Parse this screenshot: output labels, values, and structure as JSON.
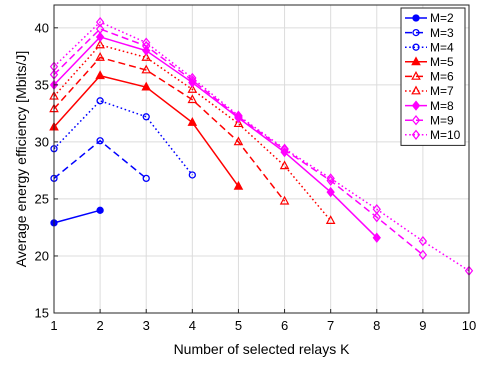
{
  "chart_data": {
    "type": "line",
    "xlabel": "Number of selected relays K",
    "ylabel": "Average energy efficiency [Mbits/J]",
    "xlim": [
      1,
      10
    ],
    "ylim": [
      15,
      42
    ],
    "xticks": [
      1,
      2,
      3,
      4,
      5,
      6,
      7,
      8,
      9,
      10
    ],
    "yticks": [
      15,
      20,
      25,
      30,
      35,
      40
    ],
    "grid": true,
    "legend_position": "top-right",
    "series": [
      {
        "name": "M=2",
        "color": "#0000ff",
        "line": "solid",
        "marker": "circle",
        "x": [
          1,
          2
        ],
        "y": [
          22.9,
          24.0
        ]
      },
      {
        "name": "M=3",
        "color": "#0000ff",
        "line": "dashed",
        "marker": "circle",
        "x": [
          1,
          2,
          3
        ],
        "y": [
          26.8,
          30.1,
          26.8
        ]
      },
      {
        "name": "M=4",
        "color": "#0000ff",
        "line": "dotted",
        "marker": "circle",
        "x": [
          1,
          2,
          3,
          4
        ],
        "y": [
          29.4,
          33.6,
          32.2,
          27.1
        ]
      },
      {
        "name": "M=5",
        "color": "#ff0000",
        "line": "solid",
        "marker": "triangle",
        "x": [
          1,
          2,
          3,
          4,
          5
        ],
        "y": [
          31.3,
          35.8,
          34.8,
          31.7,
          26.1
        ]
      },
      {
        "name": "M=6",
        "color": "#ff0000",
        "line": "dashed",
        "marker": "triangle",
        "x": [
          1,
          2,
          3,
          4,
          5,
          6
        ],
        "y": [
          32.9,
          37.4,
          36.3,
          33.7,
          30.0,
          24.8
        ]
      },
      {
        "name": "M=7",
        "color": "#ff0000",
        "line": "dotted",
        "marker": "triangle",
        "x": [
          1,
          2,
          3,
          4,
          5,
          6,
          7
        ],
        "y": [
          34.0,
          38.5,
          37.4,
          34.6,
          31.6,
          27.9,
          23.1
        ]
      },
      {
        "name": "M=8",
        "color": "#ff00ff",
        "line": "solid",
        "marker": "diamond",
        "x": [
          1,
          2,
          3,
          4,
          5,
          6,
          7,
          8
        ],
        "y": [
          35.0,
          39.2,
          38.0,
          35.2,
          32.1,
          29.1,
          25.6,
          21.6
        ]
      },
      {
        "name": "M=9",
        "color": "#ff00ff",
        "line": "dashed",
        "marker": "diamond",
        "x": [
          1,
          2,
          3,
          4,
          5,
          6,
          7,
          8,
          9
        ],
        "y": [
          35.9,
          39.9,
          38.4,
          35.4,
          32.2,
          29.3,
          26.6,
          23.4,
          20.1
        ]
      },
      {
        "name": "M=10",
        "color": "#ff00ff",
        "line": "dotted",
        "marker": "diamond",
        "x": [
          1,
          2,
          3,
          4,
          5,
          6,
          7,
          8,
          9,
          10
        ],
        "y": [
          36.6,
          40.5,
          38.7,
          35.6,
          32.3,
          29.4,
          26.8,
          24.1,
          21.3,
          18.7
        ]
      }
    ]
  }
}
